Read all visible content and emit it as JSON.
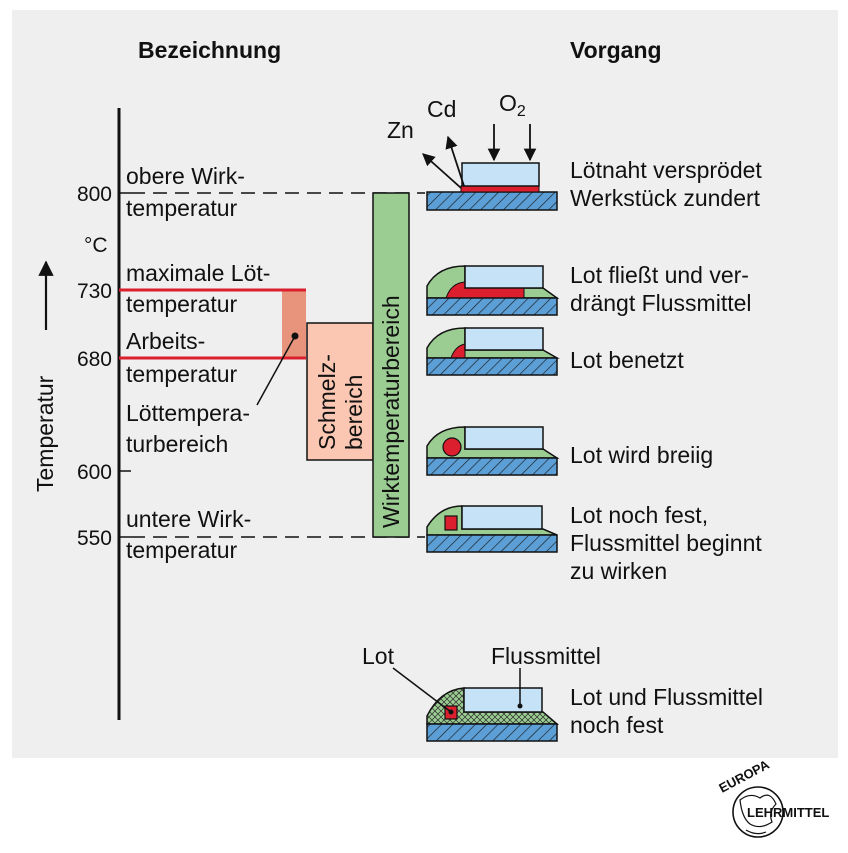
{
  "headers": {
    "left": "Bezeichnung",
    "right": "Vorgang"
  },
  "axis": {
    "label": "Temperatur",
    "unit": "°C",
    "ticks": [
      "800",
      "730",
      "680",
      "600",
      "550"
    ]
  },
  "designations": {
    "obere_1": "obere Wirk-",
    "obere_2": "temperatur",
    "max_1": "maximale Löt-",
    "max_2": "temperatur",
    "arbeit_1": "Arbeits-",
    "arbeit_2": "temperatur",
    "loet_1": "Löttempera-",
    "loet_2": "turbereich",
    "untere_1": "untere Wirk-",
    "untere_2": "temperatur"
  },
  "ranges": {
    "schmelz_1": "Schmelz-",
    "schmelz_2": "bereich",
    "wirk": "Wirktemperaturbereich"
  },
  "gases": {
    "zn": "Zn",
    "cd": "Cd",
    "o2": "O",
    "o2_sub": "2"
  },
  "processes": {
    "p1_1": "Lötnaht versprödet",
    "p1_2": "Werkstück zundert",
    "p2_1": "Lot fließt und ver-",
    "p2_2": "drängt Flussmittel",
    "p3_1": "Lot benetzt",
    "p4_1": "Lot wird breiig",
    "p5_1": "Lot noch fest,",
    "p5_2": "Flussmittel beginnt",
    "p5_3": "zu wirken",
    "p6_1": "Lot und Flussmittel",
    "p6_2": "noch fest"
  },
  "callouts": {
    "lot": "Lot",
    "flussmittel": "Flussmittel"
  },
  "logo": {
    "top": "EUROPA",
    "bottom": "LEHRMITTEL"
  },
  "colors": {
    "panel": "#efefef",
    "red": "#dc1f2e",
    "salmon": "#e8937c",
    "pink": "#fbc7b3",
    "green": "#9bcd93",
    "workpiece": "#5b9fd6",
    "part": "#c6e2f6"
  }
}
